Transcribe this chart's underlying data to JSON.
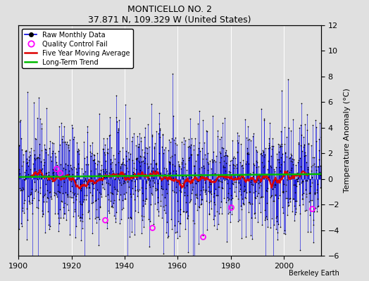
{
  "title": "MONTICELLO NO. 2",
  "subtitle": "37.871 N, 109.329 W (United States)",
  "ylabel": "Temperature Anomaly (°C)",
  "credit": "Berkeley Earth",
  "year_start": 1900,
  "year_end": 2014,
  "ylim": [
    -6,
    12
  ],
  "yticks": [
    -6,
    -4,
    -2,
    0,
    2,
    4,
    6,
    8,
    10,
    12
  ],
  "xticks": [
    1900,
    1920,
    1940,
    1960,
    1980,
    2000
  ],
  "raw_color": "#0000dd",
  "ma_color": "#dd0000",
  "trend_color": "#00bb00",
  "qc_color": "#ff00ff",
  "bg_color": "#e0e0e0",
  "grid_color": "#ffffff",
  "seed": 17,
  "noise_std": 2.2,
  "qc_points": [
    [
      1914.3,
      0.8
    ],
    [
      1915.5,
      0.5
    ],
    [
      1932.5,
      -3.2
    ],
    [
      1950.3,
      -3.8
    ],
    [
      1969.5,
      -4.5
    ],
    [
      1980.2,
      -2.2
    ],
    [
      2010.5,
      -2.3
    ]
  ],
  "trend_intercept": 0.15,
  "trend_slope": 0.002
}
